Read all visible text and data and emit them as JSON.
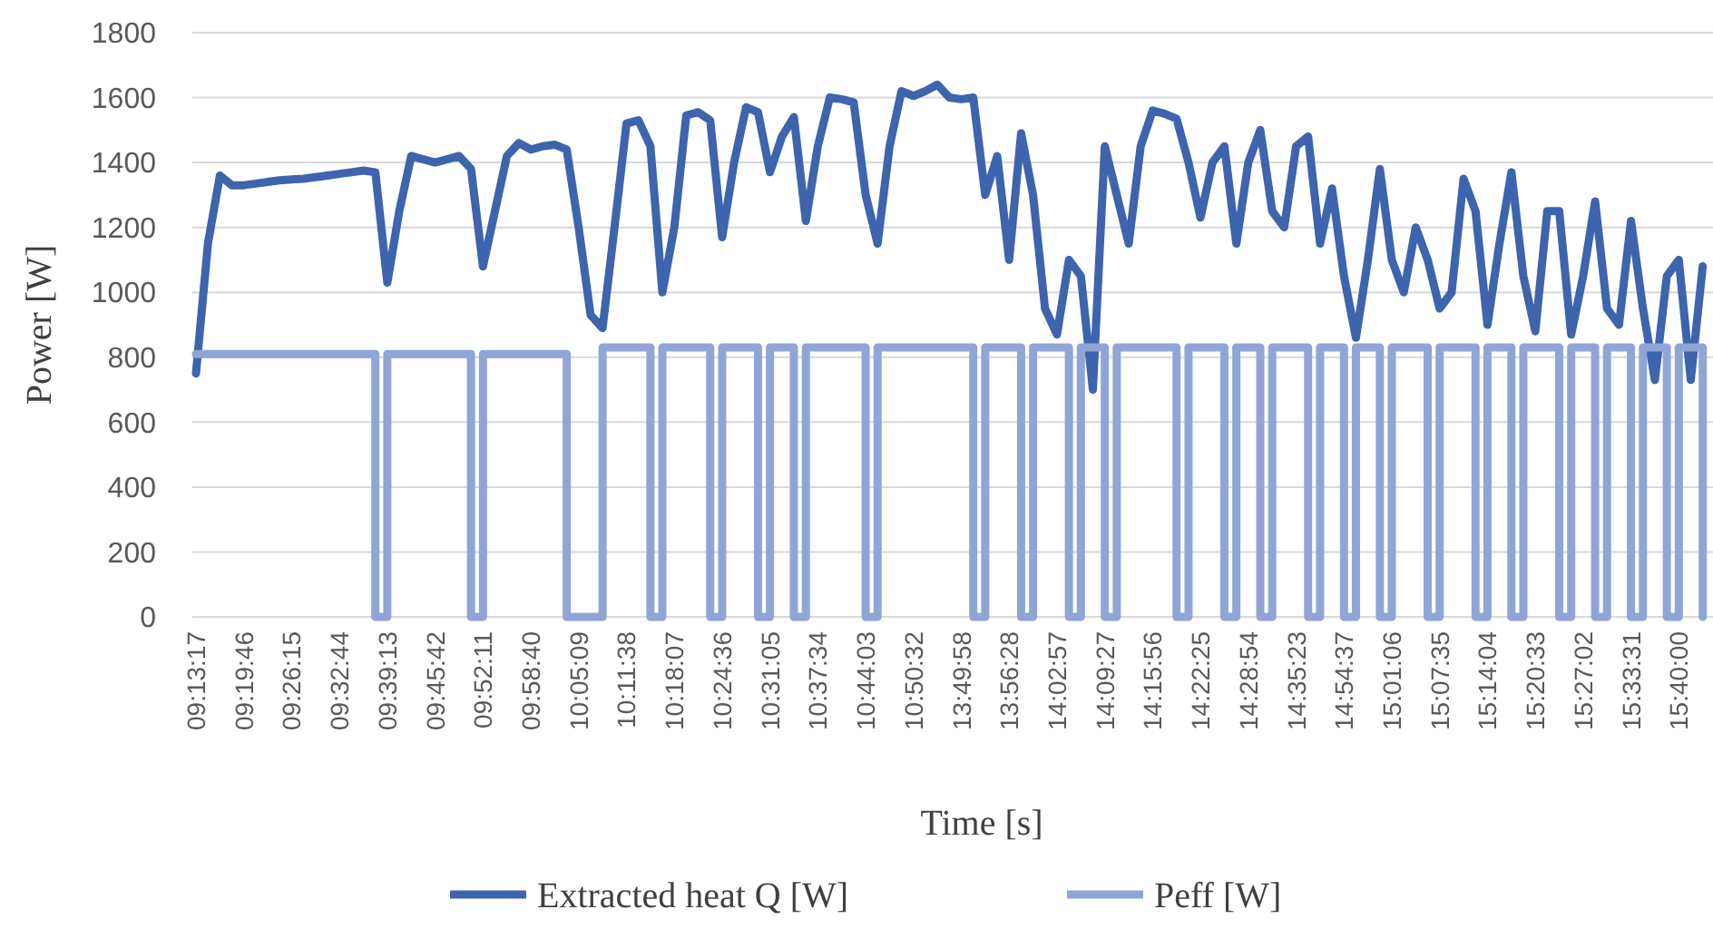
{
  "chart_data": {
    "type": "line",
    "xlabel": "Time [s]",
    "ylabel": "Power [W]",
    "categories": [
      "09:13:17",
      null,
      null,
      null,
      "09:19:46",
      null,
      null,
      null,
      "09:26:15",
      null,
      null,
      null,
      "09:32:44",
      null,
      null,
      null,
      "09:39:13",
      null,
      null,
      null,
      "09:45:42",
      null,
      null,
      null,
      "09:52:11",
      null,
      null,
      null,
      "09:58:40",
      null,
      null,
      null,
      "10:05:09",
      null,
      null,
      null,
      "10:11:38",
      null,
      null,
      null,
      "10:18:07",
      null,
      null,
      null,
      "10:24:36",
      null,
      null,
      null,
      "10:31:05",
      null,
      null,
      null,
      "10:37:34",
      null,
      null,
      null,
      "10:44:03",
      null,
      null,
      null,
      "10:50:32",
      null,
      null,
      null,
      "13:49:58",
      null,
      null,
      null,
      "13:56:28",
      null,
      null,
      null,
      "14:02:57",
      null,
      null,
      null,
      "14:09:27",
      null,
      null,
      null,
      "14:15:56",
      null,
      null,
      null,
      "14:22:25",
      null,
      null,
      null,
      "14:28:54",
      null,
      null,
      null,
      "14:35:23",
      null,
      null,
      null,
      "14:54:37",
      null,
      null,
      null,
      "15:01:06",
      null,
      null,
      null,
      "15:07:35",
      null,
      null,
      null,
      "15:14:04",
      null,
      null,
      null,
      "15:20:33",
      null,
      null,
      null,
      "15:27:02",
      null,
      null,
      null,
      "15:33:31",
      null,
      null,
      null,
      "15:40:00",
      null,
      null
    ],
    "series": [
      {
        "name": "Extracted heat Q [W]",
        "color": "#3d64ad",
        "values": [
          750,
          1150,
          1360,
          1330,
          1330,
          1335,
          1340,
          1345,
          1348,
          1350,
          1355,
          1360,
          1365,
          1370,
          1375,
          1370,
          1030,
          1250,
          1420,
          1410,
          1400,
          1410,
          1420,
          1380,
          1080,
          1250,
          1420,
          1460,
          1440,
          1450,
          1455,
          1440,
          1200,
          930,
          890,
          1200,
          1520,
          1530,
          1450,
          1000,
          1200,
          1545,
          1555,
          1530,
          1170,
          1400,
          1570,
          1555,
          1370,
          1480,
          1540,
          1220,
          1450,
          1600,
          1595,
          1585,
          1300,
          1150,
          1450,
          1620,
          1605,
          1620,
          1640,
          1600,
          1595,
          1600,
          1300,
          1420,
          1100,
          1490,
          1300,
          950,
          870,
          1100,
          1050,
          700,
          1450,
          1300,
          1150,
          1450,
          1560,
          1550,
          1535,
          1400,
          1230,
          1400,
          1450,
          1150,
          1400,
          1500,
          1250,
          1200,
          1450,
          1480,
          1150,
          1320,
          1050,
          860,
          1100,
          1380,
          1100,
          1000,
          1200,
          1100,
          950,
          1000,
          1350,
          1250,
          900,
          1150,
          1370,
          1050,
          880,
          1250,
          1250,
          870,
          1050,
          1280,
          950,
          900,
          1220,
          950,
          730,
          1050,
          1100,
          730,
          1080
        ]
      },
      {
        "name": "Peff [W]",
        "color": "#8fa5d6",
        "type": "step",
        "values": [
          810,
          810,
          810,
          810,
          810,
          810,
          810,
          810,
          810,
          810,
          810,
          810,
          810,
          810,
          810,
          0,
          810,
          810,
          810,
          810,
          810,
          810,
          810,
          0,
          810,
          810,
          810,
          810,
          810,
          810,
          810,
          0,
          0,
          0,
          830,
          830,
          830,
          830,
          0,
          830,
          830,
          830,
          830,
          0,
          830,
          830,
          830,
          0,
          830,
          830,
          0,
          830,
          830,
          830,
          830,
          830,
          0,
          830,
          830,
          830,
          830,
          830,
          830,
          830,
          830,
          0,
          830,
          830,
          830,
          0,
          830,
          830,
          830,
          0,
          830,
          830,
          0,
          830,
          830,
          830,
          830,
          830,
          0,
          830,
          830,
          830,
          0,
          830,
          830,
          0,
          830,
          830,
          830,
          0,
          830,
          830,
          0,
          830,
          830,
          0,
          830,
          830,
          830,
          0,
          830,
          830,
          830,
          0,
          830,
          830,
          0,
          830,
          830,
          830,
          0,
          830,
          830,
          0,
          830,
          830,
          0,
          830,
          830,
          0,
          830,
          830,
          0
        ]
      }
    ],
    "ylim": [
      0,
      1800
    ],
    "yticks": [
      0,
      200,
      400,
      600,
      800,
      1000,
      1200,
      1400,
      1600,
      1800
    ],
    "grid": "y",
    "legend": "bottom"
  }
}
